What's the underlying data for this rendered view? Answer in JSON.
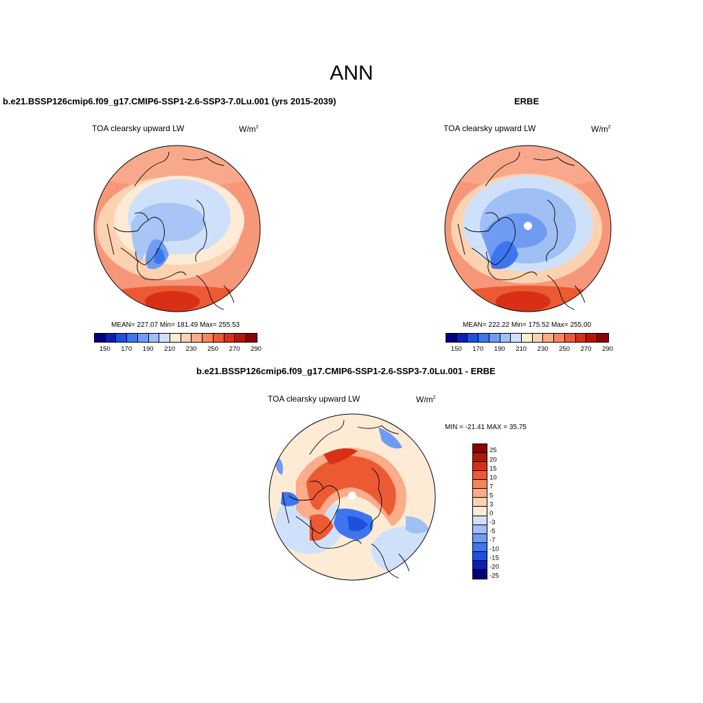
{
  "figure": {
    "title": "ANN"
  },
  "panels": {
    "model": {
      "title": "b.e21.BSSP126cmip6.f09_g17.CMIP6-SSP1-2.6-SSP3-7.0Lu.001 (yrs 2015-2039)",
      "variable": "TOA clearsky upward LW",
      "units_base": "W/m",
      "units_exp": "2",
      "stats": "MEAN= 227.07  Min= 181.49  Max= 255.53",
      "mean": 227.07,
      "min": 181.49,
      "max": 255.53
    },
    "obs": {
      "title": "ERBE",
      "variable": "TOA clearsky upward LW",
      "units_base": "W/m",
      "units_exp": "2",
      "stats": "MEAN= 222.22  Min= 175.52  Max= 255.00",
      "mean": 222.22,
      "min": 175.52,
      "max": 255.0
    },
    "diff": {
      "title": "b.e21.BSSP126cmip6.f09_g17.CMIP6-SSP1-2.6-SSP3-7.0Lu.001 - ERBE",
      "variable": "TOA clearsky upward LW",
      "units_base": "W/m",
      "units_exp": "2",
      "stats": "MIN = -21.41 MAX =  35.75",
      "min": -21.41,
      "max": 35.75
    }
  },
  "colorbar_abs": {
    "colors": [
      "#00007f",
      "#0a1fb8",
      "#1f4fdd",
      "#3d75ef",
      "#6f9cf2",
      "#9fbff5",
      "#cfe1fa",
      "#fdebd6",
      "#fdd2b0",
      "#fbac88",
      "#f7845e",
      "#ec5a33",
      "#d83016",
      "#b71408",
      "#8b0000"
    ],
    "tick_labels": [
      "150",
      "170",
      "190",
      "210",
      "230",
      "250",
      "270",
      "290"
    ]
  },
  "colorbar_diff": {
    "colors": [
      "#8b0000",
      "#b71408",
      "#d83016",
      "#ec5a33",
      "#f7845e",
      "#fbac88",
      "#fdd2b0",
      "#fdebd6",
      "#cfe1fa",
      "#9fbff5",
      "#6f9cf2",
      "#3d75ef",
      "#1f4fdd",
      "#0a1fb8",
      "#00007f"
    ],
    "labels": [
      "25",
      "20",
      "15",
      "10",
      "7",
      "5",
      "3",
      "0",
      "-3",
      "-5",
      "-7",
      "-10",
      "-15",
      "-20",
      "-25"
    ]
  }
}
